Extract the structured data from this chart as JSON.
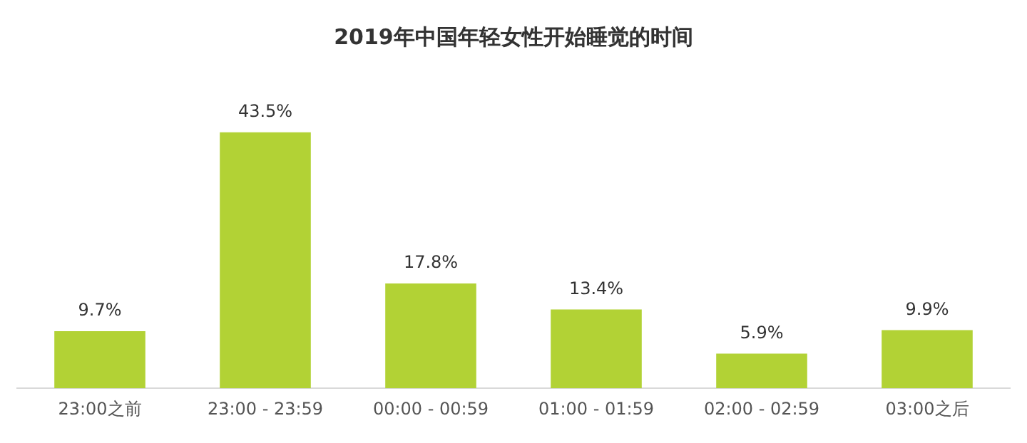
{
  "chart_data": {
    "type": "bar",
    "title": "2019年中国年轻女性开始睡觉的时间",
    "categories": [
      "23:00之前",
      "23:00 - 23:59",
      "00:00 - 00:59",
      "01:00 - 01:59",
      "02:00 - 02:59",
      "03:00之后"
    ],
    "values": [
      9.7,
      43.5,
      17.8,
      13.4,
      5.9,
      9.9
    ],
    "value_labels": [
      "9.7%",
      "43.5%",
      "17.8%",
      "13.4%",
      "5.9%",
      "9.9%"
    ],
    "color": "#b2d235",
    "grid": false,
    "legend": false
  }
}
